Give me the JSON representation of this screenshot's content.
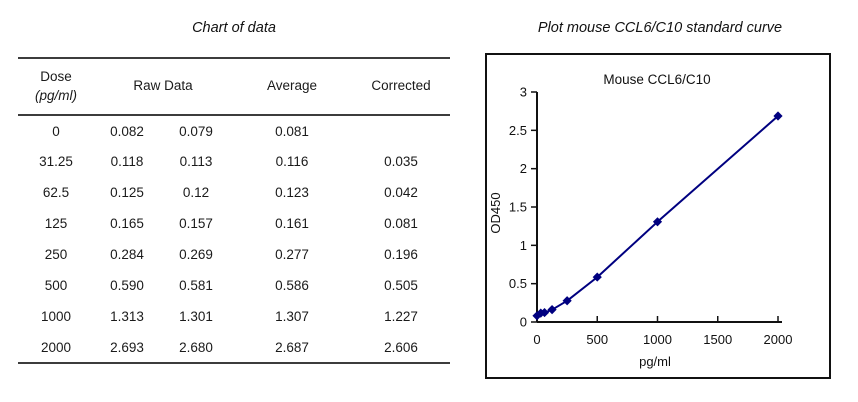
{
  "left": {
    "title": "Chart of data",
    "table": {
      "headers": {
        "dose_line1": "Dose",
        "dose_line2": "(pg/ml)",
        "raw": "Raw Data",
        "average": "Average",
        "corrected": "Corrected"
      },
      "rows": [
        {
          "dose": "0",
          "raw1": "0.082",
          "raw2": "0.079",
          "average": "0.081",
          "corrected": ""
        },
        {
          "dose": "31.25",
          "raw1": "0.118",
          "raw2": "0.113",
          "average": "0.116",
          "corrected": "0.035"
        },
        {
          "dose": "62.5",
          "raw1": "0.125",
          "raw2": "0.12",
          "average": "0.123",
          "corrected": "0.042"
        },
        {
          "dose": "125",
          "raw1": "0.165",
          "raw2": "0.157",
          "average": "0.161",
          "corrected": "0.081"
        },
        {
          "dose": "250",
          "raw1": "0.284",
          "raw2": "0.269",
          "average": "0.277",
          "corrected": "0.196"
        },
        {
          "dose": "500",
          "raw1": "0.590",
          "raw2": "0.581",
          "average": "0.586",
          "corrected": "0.505"
        },
        {
          "dose": "1000",
          "raw1": "1.313",
          "raw2": "1.301",
          "average": "1.307",
          "corrected": "1.227"
        },
        {
          "dose": "2000",
          "raw1": "2.693",
          "raw2": "2.680",
          "average": "2.687",
          "corrected": "2.606"
        }
      ]
    }
  },
  "right": {
    "title": "Plot mouse CCL6/C10 standard curve"
  },
  "chart_data": {
    "type": "line",
    "title": "Mouse CCL6/C10",
    "xlabel": "pg/ml",
    "ylabel": "OD450",
    "x": [
      0,
      31.25,
      62.5,
      125,
      250,
      500,
      1000,
      2000
    ],
    "y": [
      0.081,
      0.116,
      0.123,
      0.161,
      0.277,
      0.586,
      1.307,
      2.687
    ],
    "xlim": [
      0,
      2000
    ],
    "ylim": [
      0,
      3
    ],
    "xticks": [
      0,
      500,
      1000,
      1500,
      2000
    ],
    "yticks": [
      0,
      0.5,
      1,
      1.5,
      2,
      2.5,
      3
    ],
    "grid": false,
    "legend": "none",
    "marker": "diamond",
    "line_color": "#000080",
    "marker_color": "#000080",
    "axis_color": "#111111",
    "border_color": "#111111"
  }
}
